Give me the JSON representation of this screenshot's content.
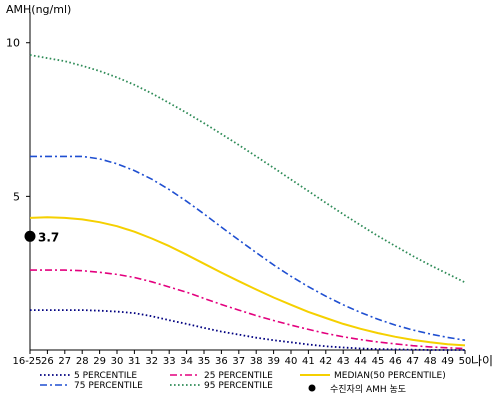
{
  "chart_data": {
    "type": "line",
    "ylabel": "AMH(ng/ml)",
    "xlabel": "나이",
    "yticks": [
      5,
      10
    ],
    "ylim": [
      0,
      11
    ],
    "x": [
      "16-25",
      "26",
      "27",
      "28",
      "29",
      "30",
      "31",
      "32",
      "33",
      "34",
      "35",
      "36",
      "37",
      "38",
      "39",
      "40",
      "41",
      "42",
      "43",
      "44",
      "45",
      "46",
      "47",
      "48",
      "49",
      "50"
    ],
    "series": [
      {
        "name": "5 PERCENTILE",
        "color": "#000080",
        "dash": "dot",
        "values": [
          1.3,
          1.3,
          1.3,
          1.3,
          1.28,
          1.25,
          1.2,
          1.1,
          0.97,
          0.85,
          0.72,
          0.6,
          0.5,
          0.4,
          0.32,
          0.25,
          0.18,
          0.12,
          0.08,
          0.05,
          0.03,
          0.02,
          0.01,
          0.0,
          0.0,
          0.0
        ]
      },
      {
        "name": "25 PERCENTILE",
        "color": "#e3007e",
        "dash": "dashdot",
        "values": [
          2.6,
          2.6,
          2.6,
          2.58,
          2.53,
          2.46,
          2.36,
          2.22,
          2.05,
          1.88,
          1.68,
          1.48,
          1.3,
          1.12,
          0.96,
          0.81,
          0.67,
          0.54,
          0.43,
          0.34,
          0.26,
          0.2,
          0.14,
          0.1,
          0.07,
          0.05
        ]
      },
      {
        "name": "MEDIAN(50 PERCENTILE)",
        "color": "#f5d000",
        "dash": "solid",
        "values": [
          4.3,
          4.32,
          4.3,
          4.25,
          4.16,
          4.03,
          3.85,
          3.63,
          3.38,
          3.1,
          2.81,
          2.52,
          2.24,
          1.97,
          1.71,
          1.47,
          1.24,
          1.04,
          0.85,
          0.69,
          0.55,
          0.43,
          0.33,
          0.25,
          0.19,
          0.15
        ]
      },
      {
        "name": "75 PERCENTILE",
        "color": "#1f4fd1",
        "dash": "dashdot",
        "values": [
          6.3,
          6.3,
          6.3,
          6.3,
          6.22,
          6.06,
          5.84,
          5.56,
          5.22,
          4.84,
          4.43,
          4.0,
          3.58,
          3.17,
          2.77,
          2.4,
          2.06,
          1.75,
          1.47,
          1.22,
          1.0,
          0.81,
          0.65,
          0.52,
          0.41,
          0.32
        ]
      },
      {
        "name": "95 PERCENTILE",
        "color": "#2e8b57",
        "dash": "dot",
        "values": [
          9.6,
          9.5,
          9.4,
          9.25,
          9.08,
          8.87,
          8.63,
          8.35,
          8.04,
          7.72,
          7.38,
          7.03,
          6.67,
          6.3,
          5.93,
          5.55,
          5.17,
          4.79,
          4.42,
          4.06,
          3.71,
          3.38,
          3.06,
          2.76,
          2.48,
          2.2
        ]
      }
    ],
    "marker": {
      "label": "수진자의 AMH 농도",
      "value": 3.7,
      "value_text": "3.7",
      "x_index": 0
    }
  }
}
